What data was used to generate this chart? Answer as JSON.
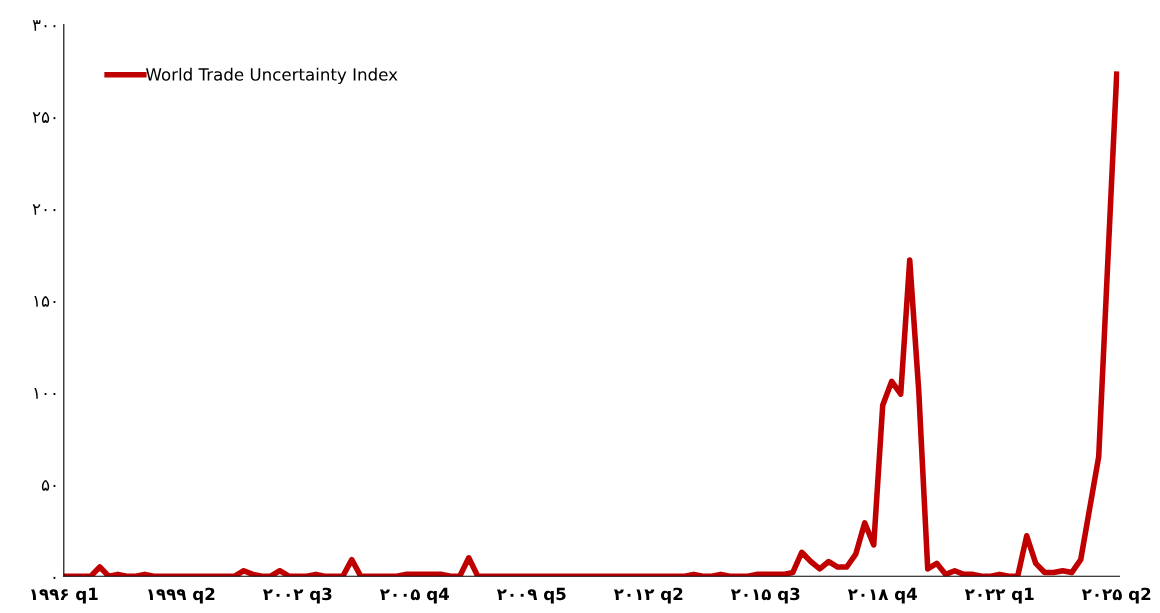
{
  "chart_data": {
    "type": "line",
    "categories": [
      "۱۹۹۶ q1",
      null,
      null,
      null,
      null,
      null,
      null,
      null,
      null,
      null,
      null,
      null,
      null,
      "۱۹۹۹ q2",
      null,
      null,
      null,
      null,
      null,
      null,
      null,
      null,
      null,
      null,
      null,
      null,
      "۲۰۰۲ q3",
      null,
      null,
      null,
      null,
      null,
      null,
      null,
      null,
      null,
      null,
      null,
      null,
      "۲۰۰۵ q4",
      null,
      null,
      null,
      null,
      null,
      null,
      null,
      null,
      null,
      null,
      null,
      null,
      "۲۰۰۹ q5",
      null,
      null,
      null,
      null,
      null,
      null,
      null,
      null,
      null,
      null,
      null,
      null,
      "۲۰۱۲ q2",
      null,
      null,
      null,
      null,
      null,
      null,
      null,
      null,
      null,
      null,
      null,
      null,
      "۲۰۱۵ q3",
      null,
      null,
      null,
      null,
      null,
      null,
      null,
      null,
      null,
      null,
      null,
      null,
      "۲۰۱۸ q4",
      null,
      null,
      null,
      null,
      null,
      null,
      null,
      null,
      null,
      null,
      null,
      null,
      "۲۰۲۲ q1",
      null,
      null,
      null,
      null,
      null,
      null,
      null,
      null,
      null,
      null,
      null,
      null,
      "۲۰۲۵ q2"
    ],
    "series": [
      {
        "name": "World Trade Uncertainty Index",
        "color": "#c00000",
        "values": [
          0,
          0,
          0,
          0,
          5,
          0,
          1,
          0,
          0,
          1,
          0,
          0,
          0,
          0,
          0,
          0,
          0,
          0,
          0,
          0,
          3,
          1,
          0,
          0,
          3,
          0,
          0,
          0,
          1,
          0,
          0,
          0,
          9,
          0,
          0,
          0,
          0,
          0,
          1,
          1,
          1,
          1,
          1,
          0,
          0,
          10,
          0,
          0,
          0,
          0,
          0,
          0,
          0,
          0,
          0,
          0,
          0,
          0,
          0,
          0,
          0,
          0,
          0,
          0,
          0,
          0,
          0,
          0,
          0,
          0,
          1,
          0,
          0,
          1,
          0,
          0,
          0,
          1,
          1,
          1,
          1,
          2,
          13,
          8,
          4,
          8,
          5,
          5,
          12,
          29,
          17,
          93,
          106,
          99,
          172,
          101,
          4,
          7,
          1,
          3,
          1,
          1,
          0,
          0,
          1,
          0,
          0,
          22,
          7,
          2,
          2,
          3,
          2,
          9,
          37,
          65,
          170,
          273
        ]
      }
    ],
    "ylim": [
      0,
      300
    ],
    "yticks": [
      {
        "value": 0,
        "label": "۰"
      },
      {
        "value": 50,
        "label": "۵۰"
      },
      {
        "value": 100,
        "label": "۱۰۰"
      },
      {
        "value": 150,
        "label": "۱۵۰"
      },
      {
        "value": 200,
        "label": "۲۰۰"
      },
      {
        "value": 250,
        "label": "۲۵۰"
      },
      {
        "value": 300,
        "label": "۳۰۰"
      }
    ],
    "grid": false,
    "legend": "top left",
    "marker": "none",
    "line_style": "solid"
  }
}
